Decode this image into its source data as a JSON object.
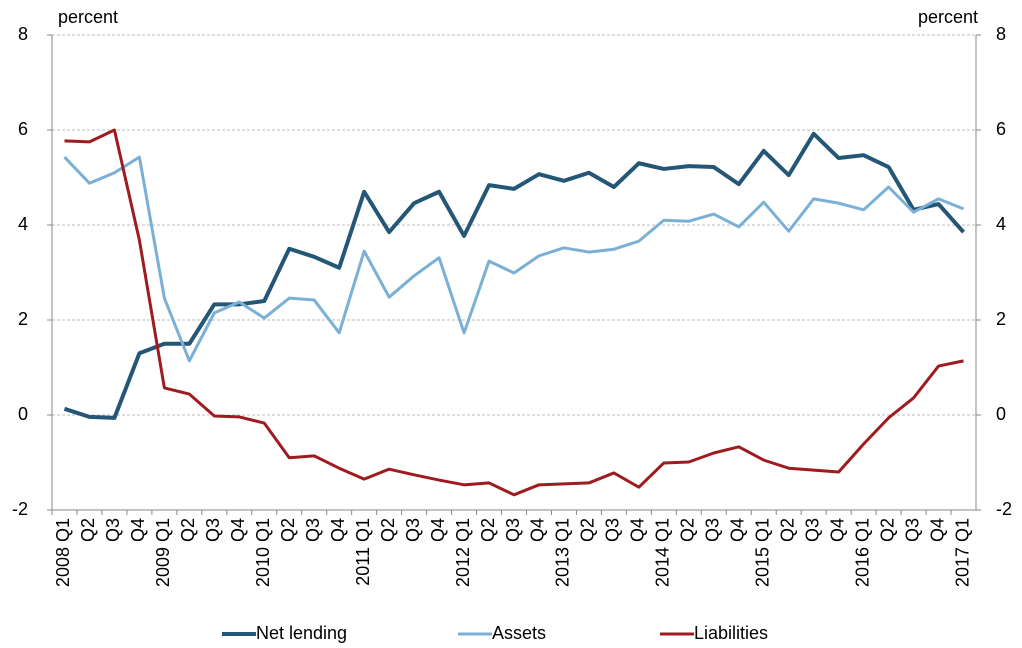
{
  "chart_data": {
    "type": "line",
    "y_label": "percent",
    "y2_label": "percent",
    "categories": [
      "2008 Q1",
      "Q2",
      "Q3",
      "Q4",
      "2009 Q1",
      "Q2",
      "Q3",
      "Q4",
      "2010 Q1",
      "Q2",
      "Q3",
      "Q4",
      "2011 Q1",
      "Q2",
      "Q3",
      "Q4",
      "2012 Q1",
      "Q2",
      "Q3",
      "Q4",
      "2013 Q1",
      "Q2",
      "Q3",
      "Q4",
      "2014 Q1",
      "Q2",
      "Q3",
      "Q4",
      "2015 Q1",
      "Q2",
      "Q3",
      "Q4",
      "2016 Q1",
      "Q2",
      "Q3",
      "Q4",
      "2017 Q1"
    ],
    "series": [
      {
        "name": "Net lending",
        "color": "#245675",
        "width": 4,
        "values": [
          0.13,
          -0.04,
          -0.06,
          1.3,
          1.5,
          1.5,
          2.33,
          2.33,
          2.4,
          3.5,
          3.33,
          3.1,
          4.7,
          3.85,
          4.46,
          4.7,
          3.77,
          4.84,
          4.76,
          5.07,
          4.93,
          5.1,
          4.8,
          5.3,
          5.18,
          5.24,
          5.22,
          4.86,
          5.56,
          5.05,
          5.92,
          5.41,
          5.47,
          5.22,
          4.32,
          4.44,
          3.85
        ]
      },
      {
        "name": "Assets",
        "color": "#7ab0d6",
        "width": 3,
        "values": [
          5.43,
          4.88,
          5.1,
          5.43,
          2.46,
          1.14,
          2.15,
          2.38,
          2.04,
          2.46,
          2.42,
          1.73,
          3.45,
          2.48,
          2.93,
          3.31,
          1.73,
          3.24,
          2.99,
          3.35,
          3.52,
          3.43,
          3.49,
          3.66,
          4.1,
          4.08,
          4.23,
          3.96,
          4.48,
          3.87,
          4.55,
          4.46,
          4.32,
          4.8,
          4.27,
          4.55,
          4.34
        ]
      },
      {
        "name": "Liabilities",
        "color": "#9e1b1f",
        "width": 3,
        "values": [
          5.77,
          5.75,
          6.0,
          3.68,
          0.57,
          0.44,
          -0.02,
          -0.04,
          -0.17,
          -0.9,
          -0.86,
          -1.12,
          -1.35,
          -1.14,
          -1.26,
          -1.37,
          -1.47,
          -1.43,
          -1.68,
          -1.47,
          -1.45,
          -1.43,
          -1.22,
          -1.52,
          -1.01,
          -0.99,
          -0.8,
          -0.67,
          -0.95,
          -1.12,
          -1.16,
          -1.2,
          -0.61,
          -0.06,
          0.36,
          1.03,
          1.14
        ]
      }
    ],
    "ylim": [
      -2,
      8
    ],
    "yticks": [
      -2,
      0,
      2,
      4,
      6,
      8
    ],
    "y2lim": [
      -2,
      8
    ],
    "y2ticks": [
      -2,
      0,
      2,
      4,
      6,
      8
    ],
    "grid": true,
    "legend": "bottom"
  }
}
